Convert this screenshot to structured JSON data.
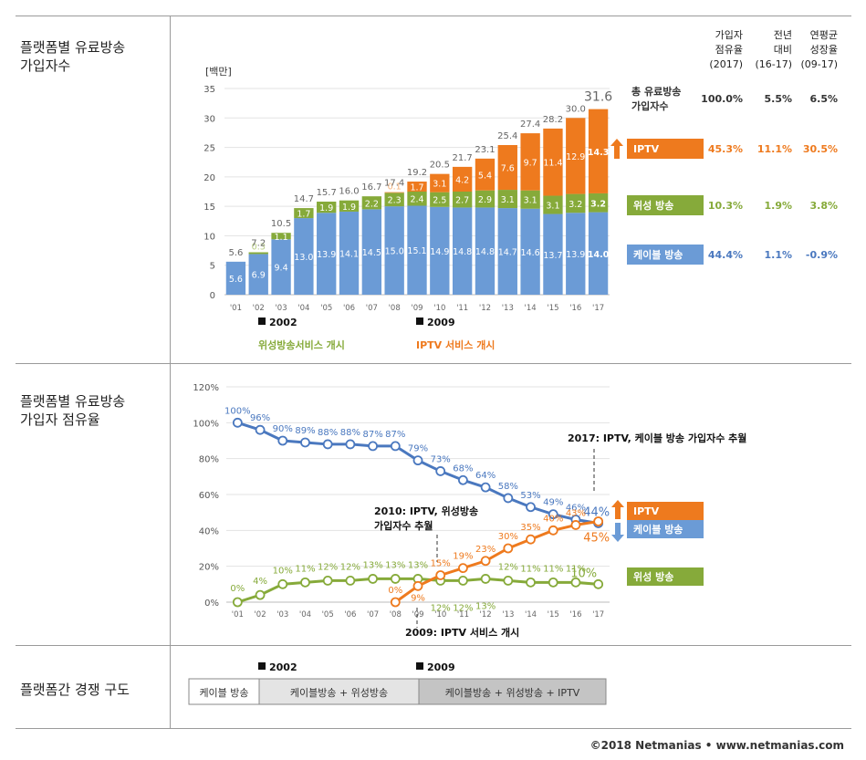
{
  "rows": {
    "row1_label": [
      "플랫폼별 유료방송",
      "가입자수"
    ],
    "row2_label": [
      "플랫폼별 유료방송",
      "가입자 점유율"
    ],
    "row3_label": "플랫폼간 경쟁 구도"
  },
  "colors": {
    "cable": "#6b9bd6",
    "cable_line": "#4a78bf",
    "satellite": "#86aa3a",
    "iptv": "#ee7a1e"
  },
  "chart_data": [
    {
      "type": "bar",
      "stacked": true,
      "unit_label": "[백만]",
      "categories": [
        "'01",
        "'02",
        "'03",
        "'04",
        "'05",
        "'06",
        "'07",
        "'08",
        "'09",
        "'10",
        "'11",
        "'12",
        "'13",
        "'14",
        "'15",
        "'16",
        "'17"
      ],
      "ylim": [
        0,
        35
      ],
      "yticks": [
        "0",
        "5",
        "10",
        "15",
        "20",
        "25",
        "30",
        "35"
      ],
      "series": [
        {
          "name": "케이블 방송",
          "values": [
            5.6,
            6.9,
            9.4,
            13.0,
            13.9,
            14.1,
            14.5,
            15.0,
            15.1,
            14.9,
            14.8,
            14.8,
            14.7,
            14.6,
            13.7,
            13.9,
            14.0
          ],
          "labels": [
            "5.6",
            "6.9",
            "9.4",
            "13.0",
            "13.9",
            "14.1",
            "14.5",
            "15.0",
            "15.1",
            "14.9",
            "14.8",
            "14.8",
            "14.7",
            "14.6",
            "13.7",
            "13.9",
            "14.0"
          ]
        },
        {
          "name": "위성 방송",
          "values": [
            0,
            0.3,
            1.1,
            1.7,
            1.9,
            1.9,
            2.2,
            2.3,
            2.4,
            2.5,
            2.7,
            2.9,
            3.1,
            3.1,
            3.1,
            3.2,
            3.2
          ],
          "labels": [
            "",
            "0.3",
            "1.1",
            "1.7",
            "1.9",
            "1.9",
            "2.2",
            "2.3",
            "2.4",
            "2.5",
            "2.7",
            "2.9",
            "3.1",
            "3.1",
            "3.1",
            "3.2",
            "3.2"
          ]
        },
        {
          "name": "IPTV",
          "values": [
            0,
            0,
            0,
            0,
            0,
            0,
            0,
            0.1,
            1.7,
            3.1,
            4.2,
            5.4,
            7.6,
            9.7,
            11.4,
            12.9,
            14.3
          ],
          "labels": [
            "",
            "",
            "",
            "",
            "",
            "",
            "",
            "0.1",
            "1.7",
            "3.1",
            "4.2",
            "5.4",
            "7.6",
            "9.7",
            "11.4",
            "12.9",
            "14.3"
          ]
        }
      ],
      "totals": [
        "5.6",
        "7.2",
        "10.5",
        "14.7",
        "15.7",
        "16.0",
        "16.7",
        "17.4",
        "19.2",
        "20.5",
        "21.7",
        "23.1",
        "25.4",
        "27.4",
        "28.2",
        "30.0",
        "31.6"
      ],
      "markers": [
        {
          "year": "2002",
          "text": "위성방송서비스 개시"
        },
        {
          "year": "2009",
          "text": "IPTV 서비스 개시"
        }
      ],
      "table": {
        "headers": [
          [
            "가입자",
            "점유율",
            "(2017)"
          ],
          [
            "전년",
            "대비",
            "(16-17)"
          ],
          [
            "연평균",
            "성장율",
            "(09-17)"
          ]
        ],
        "rows": [
          {
            "name": [
              "총 유료방송",
              "가입자수"
            ],
            "values": [
              "100.0%",
              "5.5%",
              "6.5%"
            ]
          },
          {
            "name": [
              "IPTV"
            ],
            "values": [
              "45.3%",
              "11.1%",
              "30.5%"
            ]
          },
          {
            "name": [
              "위성 방송"
            ],
            "values": [
              "10.3%",
              "1.9%",
              "3.8%"
            ]
          },
          {
            "name": [
              "케이블 방송"
            ],
            "values": [
              "44.4%",
              "1.1%",
              "-0.9%"
            ]
          }
        ]
      }
    },
    {
      "type": "line",
      "categories": [
        "'01",
        "'02",
        "'03",
        "'04",
        "'05",
        "'06",
        "'07",
        "'08",
        "'09",
        "'10",
        "'11",
        "'12",
        "'13",
        "'14",
        "'15",
        "'16",
        "'17"
      ],
      "ylim": [
        0,
        120
      ],
      "yticks": [
        "0%",
        "20%",
        "40%",
        "60%",
        "80%",
        "100%",
        "120%"
      ],
      "series": [
        {
          "name": "케이블 방송",
          "values": [
            100,
            96,
            90,
            89,
            88,
            88,
            87,
            87,
            79,
            73,
            68,
            64,
            58,
            53,
            49,
            46,
            44
          ],
          "labels": [
            "100%",
            "96%",
            "90%",
            "89%",
            "88%",
            "88%",
            "87%",
            "87%",
            "79%",
            "73%",
            "68%",
            "64%",
            "58%",
            "53%",
            "49%",
            "46%",
            "44%"
          ]
        },
        {
          "name": "위성 방송",
          "values": [
            0,
            4,
            10,
            11,
            12,
            12,
            13,
            13,
            13,
            12,
            12,
            13,
            12,
            11,
            11,
            11,
            10
          ],
          "labels": [
            "0%",
            "4%",
            "10%",
            "11%",
            "12%",
            "12%",
            "13%",
            "13%",
            "13%",
            "12%",
            "12%",
            "13%",
            "12%",
            "11%",
            "11%",
            "11%",
            "10%"
          ]
        },
        {
          "name": "IPTV",
          "values": [
            null,
            null,
            null,
            null,
            null,
            null,
            null,
            0,
            9,
            15,
            19,
            23,
            30,
            35,
            40,
            43,
            45
          ],
          "labels": [
            "",
            "",
            "",
            "",
            "",
            "",
            "",
            "0%",
            "9%",
            "15%",
            "19%",
            "23%",
            "30%",
            "35%",
            "40%",
            "43%",
            "45%"
          ]
        }
      ],
      "annotations": {
        "a2017": "2017: IPTV, 케이블 방송 가입자수 추월",
        "a2010": [
          "2010: IPTV, 위성방송",
          "가입자수 추월"
        ],
        "a2009": "2009: IPTV 서비스 개시"
      },
      "legend": {
        "iptv": "IPTV",
        "cable": "케이블 방송",
        "satellite": "위성 방송"
      }
    }
  ],
  "competition": {
    "markers": [
      "2002",
      "2009"
    ],
    "segments": [
      "케이블 방송",
      "케이블방송 + 위성방송",
      "케이블방송 + 위성방송 + IPTV"
    ]
  },
  "footer": "©2018 Netmanias • www.netmanias.com"
}
